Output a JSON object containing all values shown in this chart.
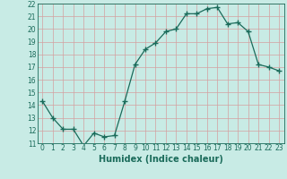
{
  "xlabel": "Humidex (Indice chaleur)",
  "ylabel": "",
  "x": [
    0,
    1,
    2,
    3,
    4,
    5,
    6,
    7,
    8,
    9,
    10,
    11,
    12,
    13,
    14,
    15,
    16,
    17,
    18,
    19,
    20,
    21,
    22,
    23
  ],
  "y": [
    14.3,
    13.0,
    12.1,
    12.1,
    10.8,
    11.8,
    11.5,
    11.6,
    14.3,
    17.2,
    18.4,
    18.9,
    19.8,
    20.0,
    21.2,
    21.2,
    21.6,
    21.7,
    20.4,
    20.5,
    19.8,
    17.2,
    17.0,
    16.7
  ],
  "line_color": "#1a6b5a",
  "marker": "+",
  "marker_size": 4,
  "bg_color": "#c8ebe5",
  "grid_color": "#d4a0a0",
  "tick_color": "#1a6b5a",
  "label_color": "#1a6b5a",
  "ylim": [
    11,
    22
  ],
  "yticks": [
    11,
    12,
    13,
    14,
    15,
    16,
    17,
    18,
    19,
    20,
    21,
    22
  ],
  "xticks": [
    0,
    1,
    2,
    3,
    4,
    5,
    6,
    7,
    8,
    9,
    10,
    11,
    12,
    13,
    14,
    15,
    16,
    17,
    18,
    19,
    20,
    21,
    22,
    23
  ],
  "axis_fontsize": 6.5,
  "tick_fontsize": 5.5,
  "xlabel_fontsize": 7.0
}
